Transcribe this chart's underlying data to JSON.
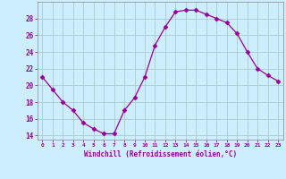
{
  "x": [
    0,
    1,
    2,
    3,
    4,
    5,
    6,
    7,
    8,
    9,
    10,
    11,
    12,
    13,
    14,
    15,
    16,
    17,
    18,
    19,
    20,
    21,
    22,
    23
  ],
  "y": [
    21.0,
    19.5,
    18.0,
    17.0,
    15.5,
    14.8,
    14.2,
    14.2,
    17.0,
    18.5,
    21.0,
    24.8,
    27.0,
    28.8,
    29.0,
    29.0,
    28.5,
    28.0,
    27.5,
    26.2,
    24.0,
    22.0,
    21.2,
    20.5
  ],
  "line_color": "#990099",
  "marker": "D",
  "marker_size": 2.5,
  "bg_color": "#cceeff",
  "grid_color": "#aacccc",
  "xlabel": "Windchill (Refroidissement éolien,°C)",
  "xlabel_color": "#990099",
  "ylabel_ticks": [
    14,
    16,
    18,
    20,
    22,
    24,
    26,
    28
  ],
  "xtick_labels": [
    "0",
    "1",
    "2",
    "3",
    "4",
    "5",
    "6",
    "7",
    "8",
    "9",
    "10",
    "11",
    "12",
    "13",
    "14",
    "15",
    "16",
    "17",
    "18",
    "19",
    "20",
    "21",
    "22",
    "23"
  ],
  "ylim": [
    13.5,
    30.0
  ],
  "xlim": [
    -0.5,
    23.5
  ]
}
